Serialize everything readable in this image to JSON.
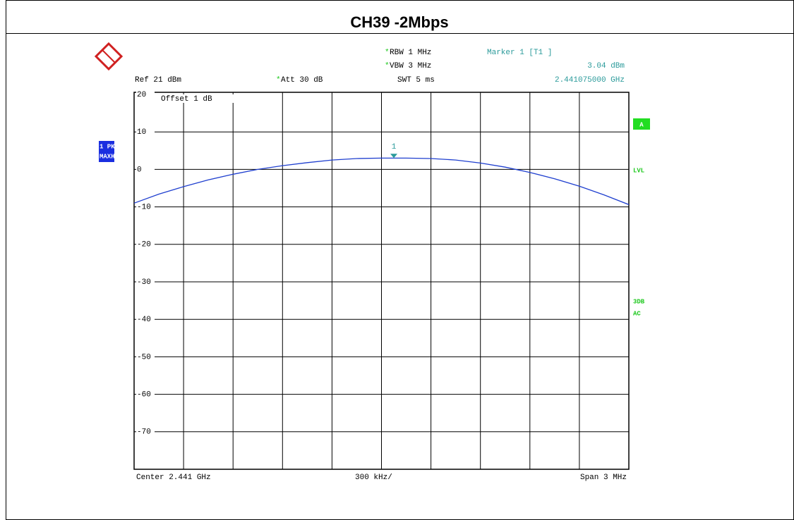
{
  "chart_data": {
    "type": "line",
    "title": "CH39 -2Mbps",
    "settings": [
      {
        "mark": "*",
        "text": "RBW 1 MHz"
      },
      {
        "mark": "*",
        "text": "VBW 3 MHz"
      },
      {
        "text": "Ref  21 dBm"
      },
      {
        "mark": "*",
        "text": "Att  30 dB"
      },
      {
        "text": "SWT 5 ms"
      }
    ],
    "offset": "Offset  1 dB",
    "trace_labels": [
      "1 PK",
      "MAXH"
    ],
    "side_labels": {
      "screen": "A",
      "level": "LVL",
      "filter": "3DB",
      "coupling": "AC"
    },
    "footer": {
      "center": "Center 2.441 GHz",
      "per_div": "300 kHz/",
      "span": "Span 3 MHz"
    },
    "x": [
      2.4395,
      2.43965,
      2.4398,
      2.43995,
      2.4401,
      2.44025,
      2.4404,
      2.44055,
      2.4407,
      2.44085,
      2.441,
      2.44115,
      2.4413,
      2.44145,
      2.4416,
      2.44175,
      2.4419,
      2.44205,
      2.4422,
      2.44235,
      2.4425
    ],
    "series": [
      {
        "color": "#1f3fcf",
        "values": [
          -9.0,
          -6.6,
          -4.6,
          -2.8,
          -1.3,
          0.0,
          1.0,
          1.8,
          2.5,
          2.9,
          3.0,
          3.0,
          2.9,
          2.5,
          1.7,
          0.6,
          -0.8,
          -2.5,
          -4.5,
          -6.8,
          -9.4
        ]
      }
    ],
    "marker": {
      "name": "Marker 1 [T1 ]",
      "label": "1",
      "x": 2.441075,
      "value": 3.04,
      "value_label": "3.04 dBm",
      "x_label": "2.441075000 GHz"
    },
    "xlim": [
      2.4395,
      2.4425
    ],
    "xdivisions": 10,
    "ylim": [
      -80,
      20
    ],
    "yticks": [
      20,
      10,
      0,
      -10,
      -20,
      -30,
      -40,
      -50,
      -60,
      -70
    ],
    "grid": true
  }
}
